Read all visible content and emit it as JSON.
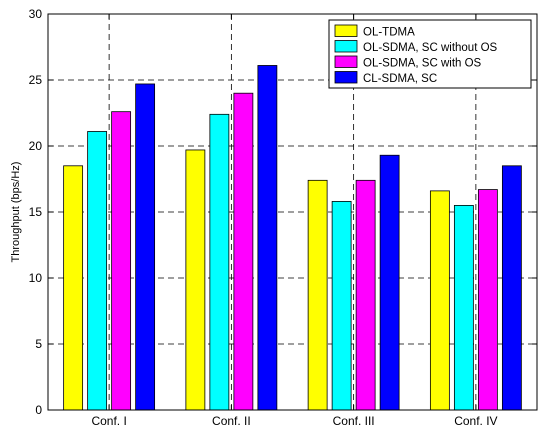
{
  "chart_data": {
    "type": "bar",
    "categories": [
      "Conf. I",
      "Conf. II",
      "Conf. III",
      "Conf. IV"
    ],
    "series": [
      {
        "name": "OL-TDMA",
        "color": "#ffff00",
        "values": [
          18.5,
          19.7,
          17.4,
          16.6
        ]
      },
      {
        "name": "OL-SDMA, SC without OS",
        "color": "#00ffff",
        "values": [
          21.1,
          22.4,
          15.8,
          15.5
        ]
      },
      {
        "name": "OL-SDMA, SC with OS",
        "color": "#ff00ff",
        "values": [
          22.6,
          24.0,
          17.4,
          16.7
        ]
      },
      {
        "name": "CL-SDMA, SC",
        "color": "#0000ff",
        "values": [
          24.7,
          26.1,
          19.3,
          18.5
        ]
      }
    ],
    "title": "",
    "xlabel": "",
    "ylabel": "Throughput (bps/Hz)",
    "ylim": [
      0,
      30
    ],
    "yticks": [
      0,
      5,
      10,
      15,
      20,
      25,
      30
    ],
    "grid": true,
    "legend_position": "top-right"
  }
}
